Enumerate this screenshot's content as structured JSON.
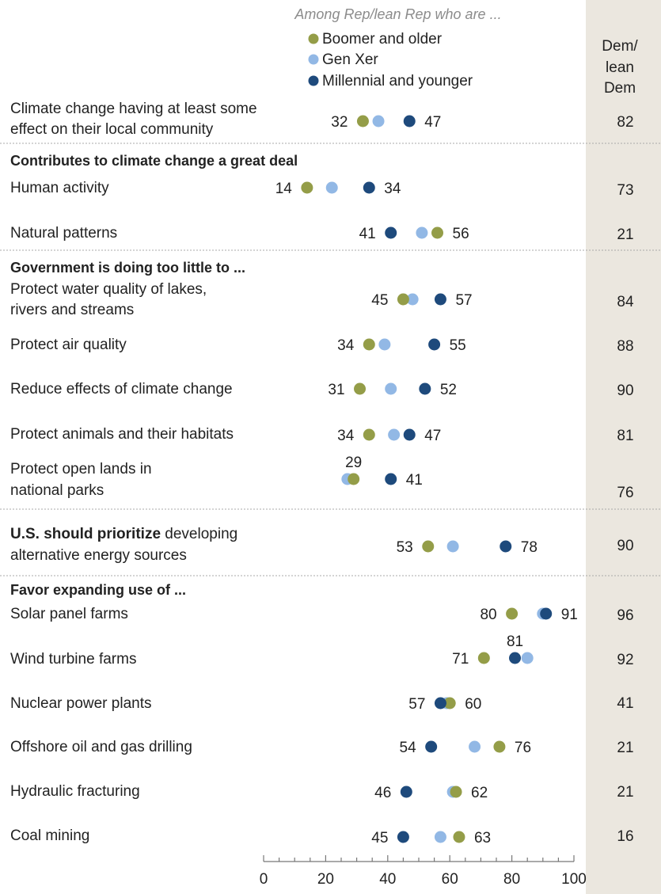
{
  "chart_data": {
    "type": "scatter",
    "title": "Among Rep/lean Rep who are ...",
    "comparison_column": {
      "header": [
        "Dem/",
        "lean",
        "Dem"
      ]
    },
    "series": [
      {
        "name": "Boomer and older",
        "color": "#949d48"
      },
      {
        "name": "Gen Xer",
        "color": "#92b8e5"
      },
      {
        "name": "Millennial and younger",
        "color": "#1e4a7c"
      }
    ],
    "xlim": [
      0,
      100
    ],
    "x_ticks": [
      "0",
      "20",
      "40",
      "60",
      "80",
      "100"
    ],
    "grid": false,
    "legend_placement": "top-center",
    "rows": [
      {
        "label": [
          "Climate change having at least some",
          "effect on their local community"
        ],
        "values": [
          32,
          37,
          47
        ],
        "labels": [
          "32",
          "",
          "47"
        ],
        "dem": "82"
      },
      {
        "header": "Contributes to climate change a great deal"
      },
      {
        "label": [
          "Human activity"
        ],
        "values": [
          14,
          22,
          34
        ],
        "labels": [
          "14",
          "",
          "34"
        ],
        "dem": "73"
      },
      {
        "label": [
          "Natural patterns"
        ],
        "values": [
          56,
          51,
          41
        ],
        "labels": [
          "56",
          "",
          "41"
        ],
        "dem": "21"
      },
      {
        "header": "Government is doing too little to ..."
      },
      {
        "label": [
          "Protect water quality of lakes,",
          "rivers and streams"
        ],
        "values": [
          45,
          48,
          57
        ],
        "labels": [
          "45",
          "",
          "57"
        ],
        "dem": "84"
      },
      {
        "label": [
          "Protect air quality"
        ],
        "values": [
          34,
          39,
          55
        ],
        "labels": [
          "34",
          "",
          "55"
        ],
        "dem": "88"
      },
      {
        "label": [
          "Reduce effects of climate change"
        ],
        "values": [
          31,
          41,
          52
        ],
        "labels": [
          "31",
          "",
          "52"
        ],
        "dem": "90"
      },
      {
        "label": [
          "Protect animals and their habitats"
        ],
        "values": [
          34,
          42,
          47
        ],
        "labels": [
          "34",
          "",
          "47"
        ],
        "dem": "81"
      },
      {
        "label": [
          "Protect open lands in",
          "national parks"
        ],
        "values": [
          29,
          27,
          41
        ],
        "labels": [
          "29",
          "",
          "41"
        ],
        "dem": "76"
      },
      {
        "header_bold": "U.S. should prioritize",
        "header_rest": " developing"
      },
      {
        "label": [
          "alternative energy sources"
        ],
        "values": [
          53,
          61,
          78
        ],
        "labels": [
          "53",
          "",
          "78"
        ],
        "dem": "90"
      },
      {
        "header": "Favor expanding use of ..."
      },
      {
        "label": [
          "Solar panel farms"
        ],
        "values": [
          80,
          90,
          91
        ],
        "labels": [
          "80",
          "",
          "91"
        ],
        "dem": "96"
      },
      {
        "label": [
          "Wind turbine farms"
        ],
        "values": [
          71,
          85,
          81
        ],
        "labels": [
          "71",
          "",
          "81"
        ],
        "dem": "92"
      },
      {
        "label": [
          "Nuclear power plants"
        ],
        "values": [
          60,
          59,
          57
        ],
        "labels": [
          "60",
          "",
          "57"
        ],
        "dem": "41"
      },
      {
        "label": [
          "Offshore oil and gas drilling"
        ],
        "values": [
          76,
          68,
          54
        ],
        "labels": [
          "76",
          "",
          "54"
        ],
        "dem": "21"
      },
      {
        "label": [
          "Hydraulic fracturing"
        ],
        "values": [
          62,
          61,
          46
        ],
        "labels": [
          "62",
          "",
          "46"
        ],
        "dem": "21"
      },
      {
        "label": [
          "Coal mining"
        ],
        "values": [
          63,
          57,
          45
        ],
        "labels": [
          "63",
          "",
          "45"
        ],
        "dem": "16"
      }
    ]
  }
}
